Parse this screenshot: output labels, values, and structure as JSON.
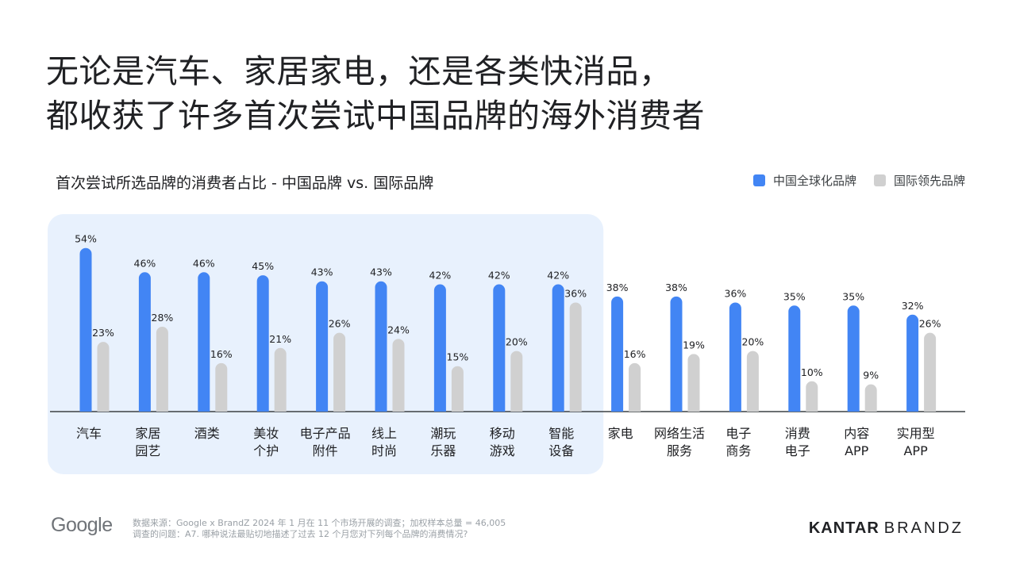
{
  "title_lines": [
    "无论是汽车、家居家电，还是各类快消品，",
    "都收获了许多首次尝试中国品牌的海外消费者"
  ],
  "colors": {
    "chinese_brands": "#4285f4",
    "international_brands": "#d0d0d0",
    "highlight_panel": "#e8f1fd",
    "axis": "#3c4043"
  },
  "chart_data": {
    "type": "bar",
    "title": "首次尝试所选品牌的消费者占比 - 中国品牌 vs. 国际品牌",
    "categories": [
      [
        "汽车"
      ],
      [
        "家居",
        "园艺"
      ],
      [
        "酒类"
      ],
      [
        "美妆",
        "个护"
      ],
      [
        "电子产品",
        "附件"
      ],
      [
        "线上",
        "时尚"
      ],
      [
        "潮玩",
        "乐器"
      ],
      [
        "移动",
        "游戏"
      ],
      [
        "智能",
        "设备"
      ],
      [
        "家电"
      ],
      [
        "网络生活",
        "服务"
      ],
      [
        "电子",
        "商务"
      ],
      [
        "消费",
        "电子"
      ],
      [
        "内容",
        "APP"
      ],
      [
        "实用型",
        "APP"
      ]
    ],
    "series": [
      {
        "name": "中国全球化品牌",
        "values": [
          54,
          46,
          46,
          45,
          43,
          43,
          42,
          42,
          42,
          38,
          38,
          36,
          35,
          35,
          32
        ],
        "labels": [
          "54%",
          "46%",
          "46%",
          "45%",
          "43%",
          "43%",
          "42%",
          "42%",
          "42%",
          "38%",
          "38%",
          "36%",
          "35%",
          "35%",
          "32%"
        ]
      },
      {
        "name": "国际领先品牌",
        "values": [
          23,
          28,
          16,
          21,
          26,
          24,
          15,
          20,
          36,
          16,
          19,
          20,
          10,
          9,
          26
        ],
        "labels": [
          "23%",
          "28%",
          "16%",
          "21%",
          "26%",
          "24%",
          "15%",
          "20%",
          "36%",
          "16%",
          "19%",
          "20%",
          "10%",
          "9%",
          "26%"
        ]
      }
    ],
    "highlighted_categories": 9,
    "ylim": [
      0,
      60
    ],
    "legend_position": "top-right",
    "grid": false
  },
  "footer": {
    "logo_text": "Google",
    "source_line": "数据来源：Google x BrandZ 2024 年 1 月在 11 个市场开展的调查；加权样本总量 = 46,005",
    "question_line": "调查的问题：A7. 哪种说法最贴切地描述了过去 12 个月您对下列每个品牌的消费情况?",
    "brand_bold": "KANTAR",
    "brand_light": "BRANDZ"
  }
}
